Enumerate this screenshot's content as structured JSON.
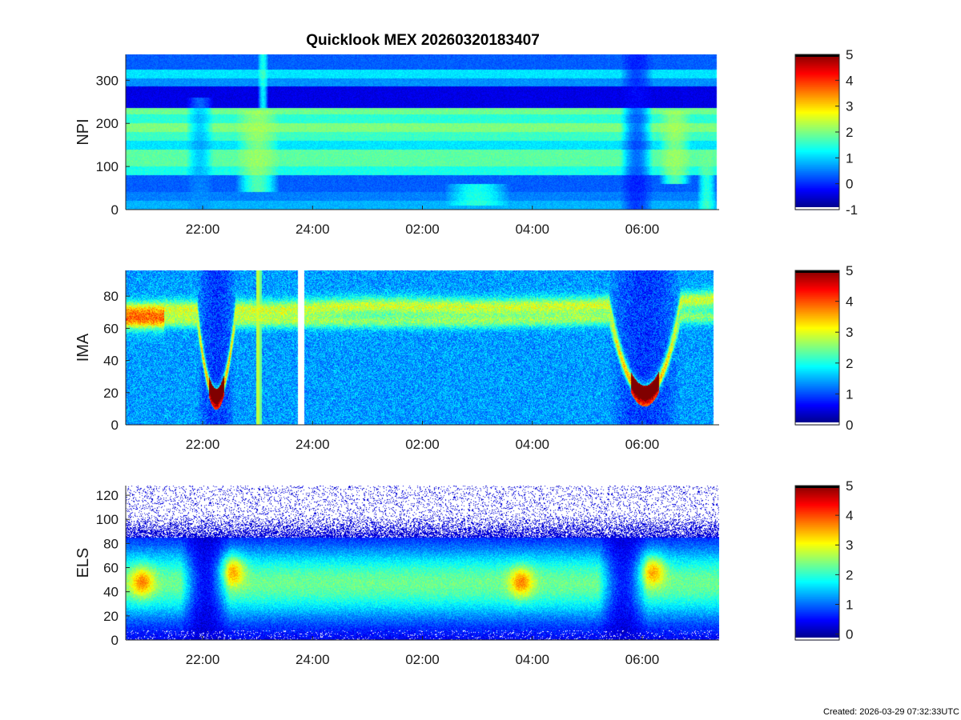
{
  "title": "Quicklook MEX 20260320183407",
  "created": "Created: 2026-03-29 07:32:33UTC",
  "colors": {
    "background": "#ffffff",
    "axis": "#262626"
  },
  "chart_data": [
    {
      "type": "heatmap",
      "ylabel": "NPI",
      "ylim": [
        0,
        360
      ],
      "yticks": [
        0,
        100,
        200,
        300
      ],
      "xlim": [
        20.6,
        31.4
      ],
      "xticks": [
        22,
        24,
        26,
        28,
        30
      ],
      "xtick_labels": [
        "22:00",
        "24:00",
        "02:00",
        "04:00",
        "06:00"
      ],
      "data_end": 31.35,
      "colorbar": {
        "range": [
          -1,
          5
        ],
        "ticks": [
          -1,
          0,
          1,
          2,
          3,
          4,
          5
        ]
      },
      "bands": [
        {
          "y": [
            0,
            20
          ],
          "level": 0.8
        },
        {
          "y": [
            20,
            40
          ],
          "level": 0.5
        },
        {
          "y": [
            40,
            80
          ],
          "level": 0.3
        },
        {
          "y": [
            80,
            100
          ],
          "level": 1.4
        },
        {
          "y": [
            100,
            140
          ],
          "level": 1.8
        },
        {
          "y": [
            140,
            160
          ],
          "level": 1.1
        },
        {
          "y": [
            160,
            180
          ],
          "level": 1.6
        },
        {
          "y": [
            180,
            200
          ],
          "level": 2.0
        },
        {
          "y": [
            200,
            220
          ],
          "level": 1.5
        },
        {
          "y": [
            220,
            235
          ],
          "level": 1.9
        },
        {
          "y": [
            235,
            285
          ],
          "level": -0.4
        },
        {
          "y": [
            285,
            305
          ],
          "level": 0.6
        },
        {
          "y": [
            305,
            325
          ],
          "level": 1.1
        },
        {
          "y": [
            325,
            360
          ],
          "level": 0.3
        }
      ],
      "features": [
        {
          "t": [
            21.7,
            22.2
          ],
          "y": [
            0,
            260
          ],
          "level": 0.6
        },
        {
          "t": [
            22.6,
            23.4
          ],
          "y": [
            40,
            230
          ],
          "level": 2.3
        },
        {
          "t": [
            23.0,
            23.2
          ],
          "y": [
            230,
            360
          ],
          "level": 1.8
        },
        {
          "t": [
            26.4,
            27.6
          ],
          "y": [
            10,
            60
          ],
          "level": 1.8
        },
        {
          "t": [
            29.6,
            30.2
          ],
          "y": [
            0,
            360
          ],
          "level": -0.2
        },
        {
          "t": [
            30.3,
            30.9
          ],
          "y": [
            60,
            230
          ],
          "level": 2.3
        },
        {
          "t": [
            31.0,
            31.35
          ],
          "y": [
            0,
            140
          ],
          "level": 1.9
        }
      ]
    },
    {
      "type": "heatmap",
      "ylabel": "IMA",
      "ylim": [
        0,
        96
      ],
      "yticks": [
        0,
        20,
        40,
        60,
        80
      ],
      "xlim": [
        20.6,
        31.4
      ],
      "xticks": [
        22,
        24,
        26,
        28,
        30
      ],
      "xtick_labels": [
        "22:00",
        "24:00",
        "02:00",
        "04:00",
        "06:00"
      ],
      "data_end": 31.3,
      "data_gaps": [
        [
          23.73,
          23.85
        ]
      ],
      "colorbar": {
        "range": [
          0,
          5
        ],
        "ticks": [
          0,
          1,
          2,
          3,
          4,
          5
        ]
      },
      "background_level": 1.4,
      "ridge_start": [
        20.6,
        71,
        3.0
      ],
      "ridge_track": [
        [
          23.4,
          72
        ],
        [
          25.0,
          74
        ],
        [
          27.0,
          73
        ],
        [
          29.0,
          74
        ],
        [
          31.3,
          78
        ]
      ],
      "ridge_low_band": [
        [
          23.4,
          64
        ],
        [
          27.0,
          64
        ],
        [
          31.3,
          67
        ]
      ],
      "dips": [
        {
          "t": [
            21.9,
            22.6
          ],
          "bottom": 20,
          "peak_level": 4.3
        },
        {
          "t": [
            29.4,
            30.7
          ],
          "bottom": 22,
          "peak_level": 4.1
        }
      ],
      "vertical_streaks": [
        {
          "t": 23.0,
          "level": 2.8
        },
        {
          "t": 23.05,
          "level": 2.4
        }
      ]
    },
    {
      "type": "heatmap",
      "ylabel": "ELS",
      "ylim": [
        0,
        128
      ],
      "yticks": [
        0,
        20,
        40,
        60,
        80,
        100,
        120
      ],
      "xlim": [
        20.6,
        31.4
      ],
      "xticks": [
        22,
        24,
        26,
        28,
        30
      ],
      "xtick_labels": [
        "22:00",
        "24:00",
        "02:00",
        "04:00",
        "06:00"
      ],
      "data_end": 31.4,
      "colorbar": {
        "range": [
          -0.2,
          5
        ],
        "ticks": [
          0,
          1,
          2,
          3,
          4,
          5
        ]
      },
      "core_band": [
        32,
        62
      ],
      "core_level": 2.3,
      "edge_level": 0.2,
      "noise_floor": 85,
      "dips": [
        {
          "t": [
            21.6,
            22.5
          ],
          "level": 0.5
        },
        {
          "t": [
            29.2,
            30.1
          ],
          "level": 0.6
        }
      ],
      "hot_spots": [
        {
          "t": 20.9,
          "y": 48,
          "level": 3.3
        },
        {
          "t": 22.55,
          "y": 58,
          "level": 4.0
        },
        {
          "t": 27.8,
          "y": 48,
          "level": 3.2
        },
        {
          "t": 30.2,
          "y": 58,
          "level": 3.9
        }
      ]
    }
  ]
}
